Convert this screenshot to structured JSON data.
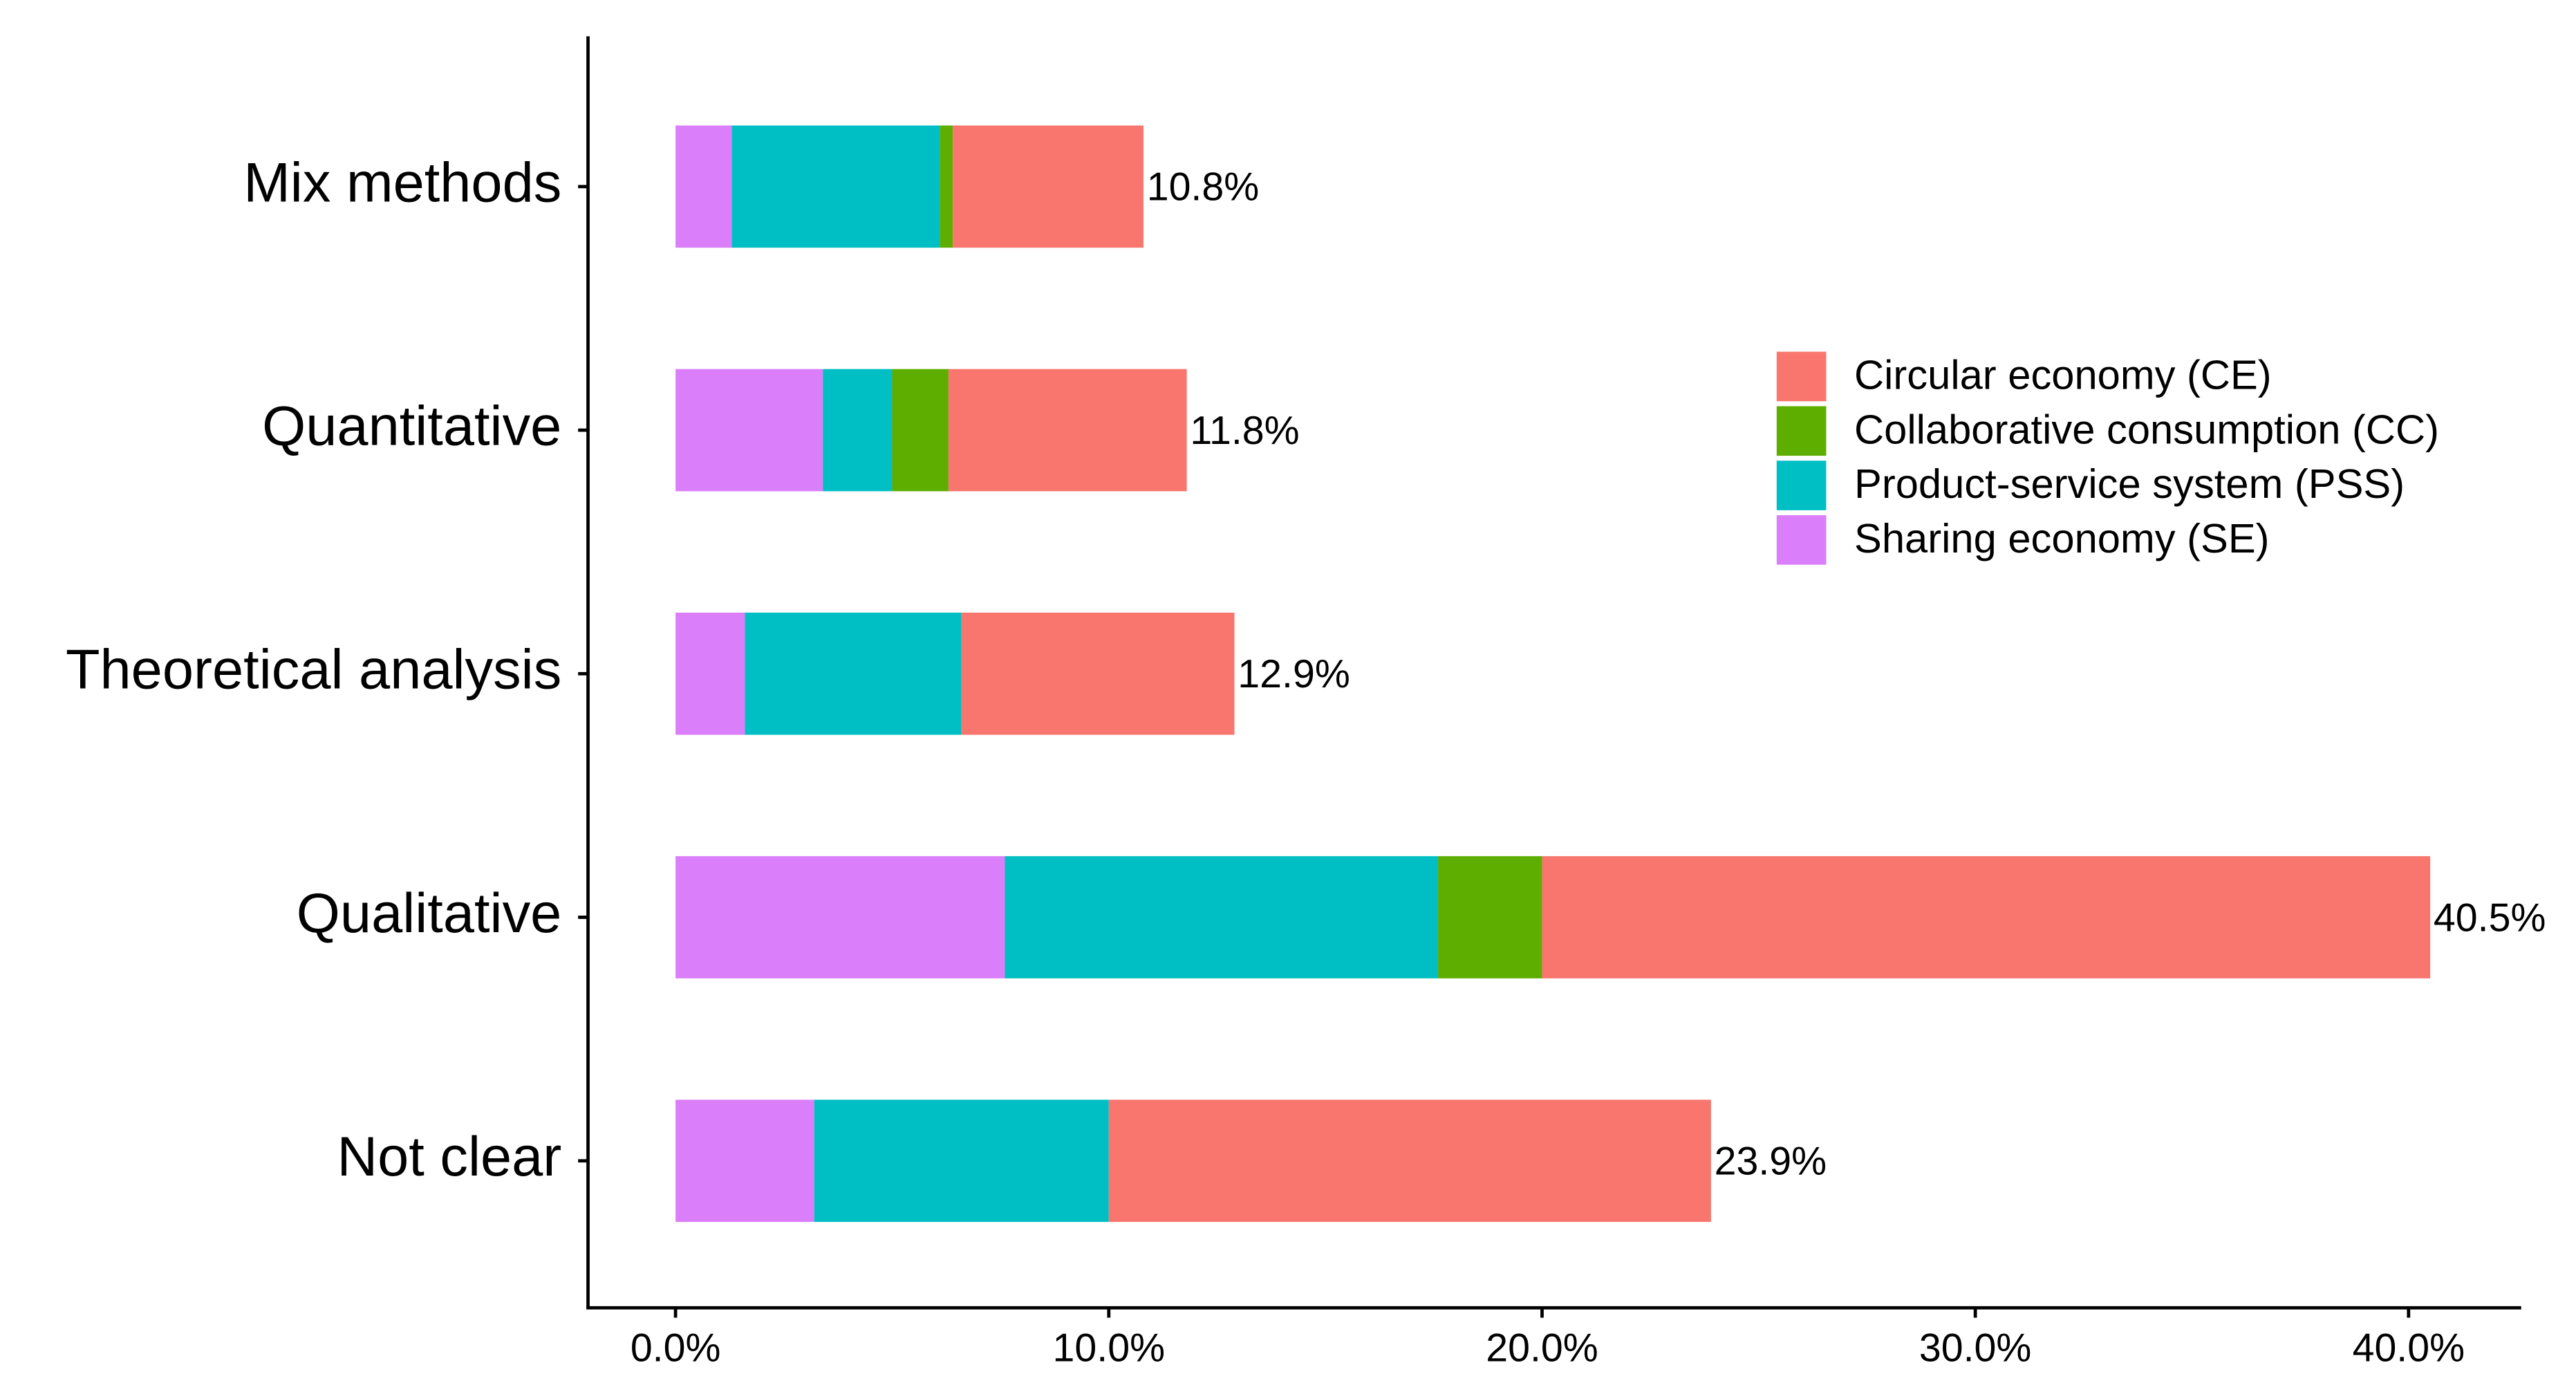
{
  "chart_data": {
    "type": "stacked-barh",
    "categories": [
      "Mix methods",
      "Quantitative",
      "Theoretical analysis",
      "Qualitative",
      "Not clear"
    ],
    "series": [
      {
        "name": "Sharing economy (SE)",
        "color": "#DB7EF9",
        "values": [
          1.3,
          3.4,
          1.6,
          7.6,
          3.2
        ]
      },
      {
        "name": "Product-service system (PSS)",
        "color": "#00BFC4",
        "values": [
          4.8,
          1.6,
          5.0,
          10.0,
          6.8
        ]
      },
      {
        "name": "Collaborative consumption (CC)",
        "color": "#5EAE00",
        "values": [
          0.3,
          1.3,
          0,
          2.4,
          0
        ]
      },
      {
        "name": "Circular economy (CE)",
        "color": "#F8766D",
        "values": [
          4.4,
          5.5,
          6.3,
          20.5,
          13.9
        ]
      }
    ],
    "totals": {
      "values": [
        10.8,
        11.8,
        12.9,
        40.5,
        23.9
      ],
      "value_labels": [
        "10.8%",
        "11.8%",
        "12.9%",
        "40.5%",
        "23.9%"
      ]
    },
    "xlim": [
      -2.02,
      42.6
    ],
    "xticks": [
      {
        "value": 0,
        "label": "0.0%"
      },
      {
        "value": 10,
        "label": "10.0%"
      },
      {
        "value": 20,
        "label": "20.0%"
      },
      {
        "value": 30,
        "label": "30.0%"
      },
      {
        "value": 40,
        "label": "40.0%"
      }
    ],
    "legend": "right",
    "grid": false
  }
}
